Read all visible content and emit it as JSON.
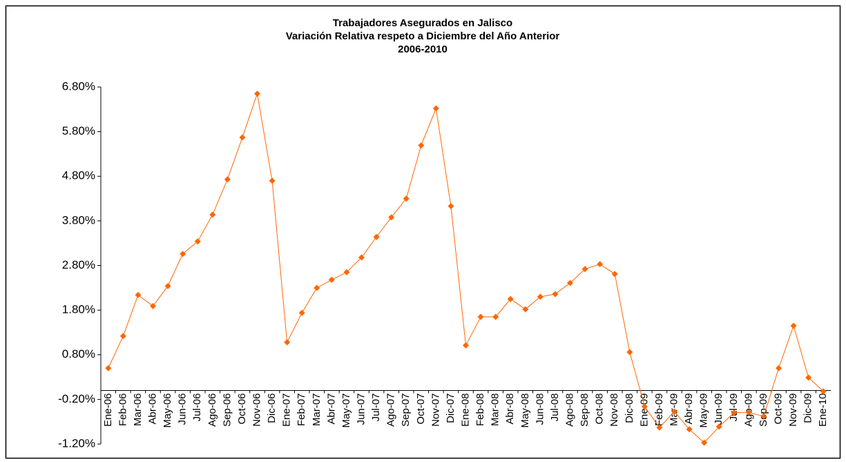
{
  "chart_data": {
    "type": "line",
    "title": [
      "Trabajadores Asegurados en Jalisco",
      "Variación Relativa respeto a Diciembre del Año Anterior",
      "2006-2010"
    ],
    "categories": [
      "Ene-06",
      "Feb-06",
      "Mar-06",
      "Abr-06",
      "May-06",
      "Jun-06",
      "Jul-06",
      "Ago-06",
      "Sep-06",
      "Oct-06",
      "Nov-06",
      "Dic-06",
      "Ene-07",
      "Feb-07",
      "Mar-07",
      "Abr-07",
      "May-07",
      "Jun-07",
      "Jul-07",
      "Ago-07",
      "Sep-07",
      "Oct-07",
      "Nov-07",
      "Dic-07",
      "Ene-08",
      "Feb-08",
      "Mar-08",
      "Abr-08",
      "May-08",
      "Jun-08",
      "Jul-08",
      "Ago-08",
      "Sep-08",
      "Oct-08",
      "Nov-08",
      "Dic-08",
      "Ene-09",
      "Feb-09",
      "Mar-09",
      "Abr-09",
      "May-09",
      "Jun-09",
      "Jul-09",
      "Ago-09",
      "Sep-09",
      "Oct-09",
      "Nov-09",
      "Dic-09",
      "Ene-10"
    ],
    "values": [
      0.5,
      1.22,
      2.14,
      1.89,
      2.34,
      3.06,
      3.34,
      3.94,
      4.73,
      5.67,
      6.65,
      4.7,
      1.08,
      1.74,
      2.3,
      2.48,
      2.65,
      2.98,
      3.44,
      3.88,
      4.3,
      5.49,
      6.32,
      4.13,
      1.01,
      1.65,
      1.65,
      2.05,
      1.82,
      2.1,
      2.16,
      2.41,
      2.72,
      2.83,
      2.61,
      0.86,
      -0.36,
      -0.83,
      -0.47,
      -0.87,
      -1.17,
      -0.81,
      -0.5,
      -0.49,
      -0.58,
      0.5,
      1.45,
      0.29,
      -0.02
    ],
    "color": "#ff6600",
    "ylim": [
      -1.2,
      6.8
    ],
    "yticks": [
      {
        "value": -1.2,
        "label": "-1.20%"
      },
      {
        "value": -0.2,
        "label": "-0.20%"
      },
      {
        "value": 0.8,
        "label": "0.80%"
      },
      {
        "value": 1.8,
        "label": "1.80%"
      },
      {
        "value": 2.8,
        "label": "2.80%"
      },
      {
        "value": 3.8,
        "label": "3.80%"
      },
      {
        "value": 4.8,
        "label": "4.80%"
      },
      {
        "value": 5.8,
        "label": "5.80%"
      },
      {
        "value": 6.8,
        "label": "6.80%"
      }
    ],
    "grid": false
  }
}
